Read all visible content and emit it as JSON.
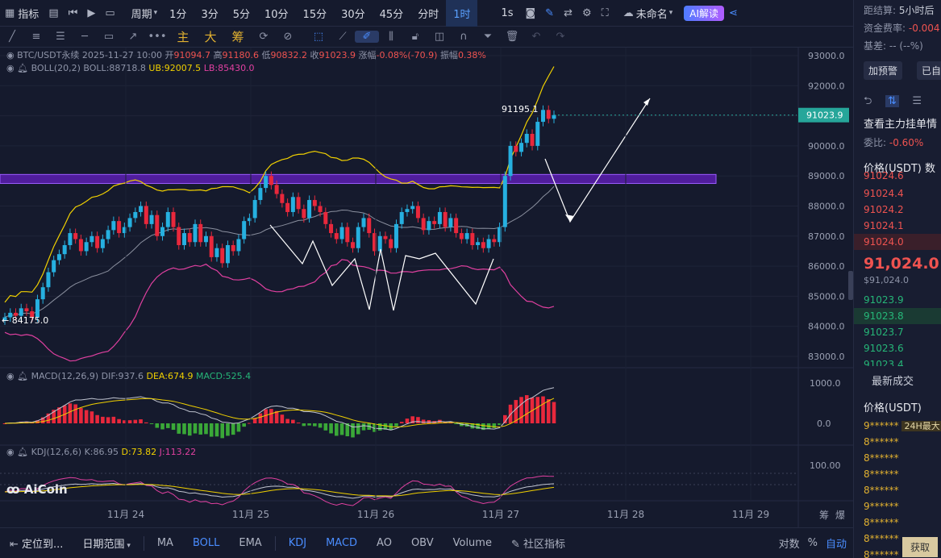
{
  "toolbar": {
    "indicator_label": "指标",
    "period_label": "周期",
    "timeframes": [
      "1分",
      "3分",
      "5分",
      "10分",
      "15分",
      "30分",
      "45分",
      "分时",
      "1时",
      "1s"
    ],
    "active_timeframe": "1时",
    "layout_name": "未命名",
    "ai_button": "AI解读"
  },
  "drawing_tools": {
    "main_char": "主",
    "big_char": "大",
    "chip_char": "筹"
  },
  "legend": {
    "symbol": "BTC/USDT永续",
    "datetime": "2025-11-27 10:00",
    "open_label": "开",
    "open": "91094.7",
    "high_label": "高",
    "high": "91180.6",
    "low_label": "低",
    "low": "90832.2",
    "close_label": "收",
    "close": "91023.9",
    "change_label": "涨幅",
    "change": "-0.08%(-70.9)",
    "amp_label": "振幅",
    "amp": "0.38%",
    "boll_name": "BOLL(20,2)",
    "boll_mid": "BOLL:88718.8",
    "boll_ub": "UB:92007.5",
    "boll_lb": "LB:85430.0",
    "macd_name": "MACD(12,26,9)",
    "macd_dif": "DIF:937.6",
    "macd_dea": "DEA:674.9",
    "macd_val": "MACD:525.4",
    "kdj_name": "KDJ(12,6,6)",
    "kdj_k": "K:86.95",
    "kdj_d": "D:73.82",
    "kdj_j": "J:113.22"
  },
  "chart_data": {
    "type": "candlestick",
    "symbol": "BTC/USDT永续",
    "interval": "1时",
    "price_axis": [
      "93000.0",
      "92000.0",
      "91000.0",
      "90000.0",
      "89000.0",
      "88000.0",
      "87000.0",
      "86000.0",
      "85000.0",
      "84000.0",
      "83000.0"
    ],
    "price_range": [
      82500,
      93300
    ],
    "current_price": "91023.9",
    "high_marker": "91195.1",
    "low_marker": "84175.0",
    "resistance_zone": [
      88750,
      89050
    ],
    "date_labels": [
      "11月 24",
      "11月 25",
      "11月 26",
      "11月 27",
      "11月 28",
      "11月 29"
    ],
    "close_series": [
      84300,
      84450,
      84350,
      84600,
      84500,
      84300,
      84900,
      85300,
      85800,
      86200,
      86400,
      86700,
      87100,
      86900,
      86500,
      86800,
      87000,
      86600,
      86900,
      87200,
      87500,
      87100,
      87300,
      87600,
      87800,
      88000,
      87400,
      87700,
      87000,
      87300,
      87800,
      87300,
      86700,
      87100,
      86800,
      87400,
      86800,
      87000,
      86300,
      86600,
      86100,
      86700,
      86500,
      86900,
      87500,
      87600,
      88200,
      88600,
      89000,
      88700,
      88400,
      88100,
      87800,
      88300,
      87900,
      87600,
      88200,
      88000,
      87800,
      87400,
      87100,
      86900,
      87300,
      86800,
      86600,
      87300,
      87600,
      87100,
      86500,
      87000,
      86900,
      86600,
      87400,
      87800,
      87900,
      88000,
      87600,
      87200,
      87500,
      87400,
      87800,
      87300,
      87600,
      87100,
      86900,
      87100,
      86700,
      86800,
      86600,
      86900,
      86800,
      87300,
      89000,
      90000,
      89800,
      90100,
      90400,
      90000,
      90800,
      91195,
      90900,
      91024
    ],
    "macd_axis": [
      "1000.0",
      "0.0"
    ],
    "kdj_axis": [
      "100.00"
    ]
  },
  "chart_labels": {
    "high_marker": "91195.1",
    "low_marker": "← 84175.0",
    "price_tag": "91023.9",
    "watermark": "AiCoin",
    "axis_bottom_right": [
      "筹",
      "爆"
    ]
  },
  "bottom_bar": {
    "locate": "定位到...",
    "date_range": "日期范围",
    "tabs": [
      "MA",
      "BOLL",
      "EMA",
      "KDJ",
      "MACD",
      "AO",
      "OBV",
      "Volume"
    ],
    "community": "社区指标",
    "log": "对数",
    "pct": "%",
    "auto": "自动"
  },
  "right_panel": {
    "settle_label": "距结算:",
    "settle_value": "5小时后",
    "funding_label": "资金费率:",
    "funding_value": "-0.004",
    "basis_label": "基差:",
    "basis_value": "-- (--%)",
    "alert_button": "加预警",
    "auto_button": "已自",
    "depth_link": "查看主力挂单情",
    "ratio_label": "委比:",
    "ratio_value": "-0.60%",
    "price_header": "价格(USDT) 数",
    "asks": [
      "91024.6",
      "91024.4",
      "91024.2",
      "91024.1",
      "91024.0"
    ],
    "last_price": "91,024.0",
    "last_sub": "$91,024.0",
    "bids": [
      "91023.9",
      "91023.8",
      "91023.7",
      "91023.6",
      "91023.4"
    ],
    "trades_title": "最新成交",
    "trades_header": "价格(USDT)",
    "trades": [
      "9******",
      "8******",
      "8******",
      "8******",
      "8******",
      "9******",
      "8******",
      "8******",
      "8******"
    ],
    "tag_24h": "24H最大",
    "fetch": "获取"
  }
}
